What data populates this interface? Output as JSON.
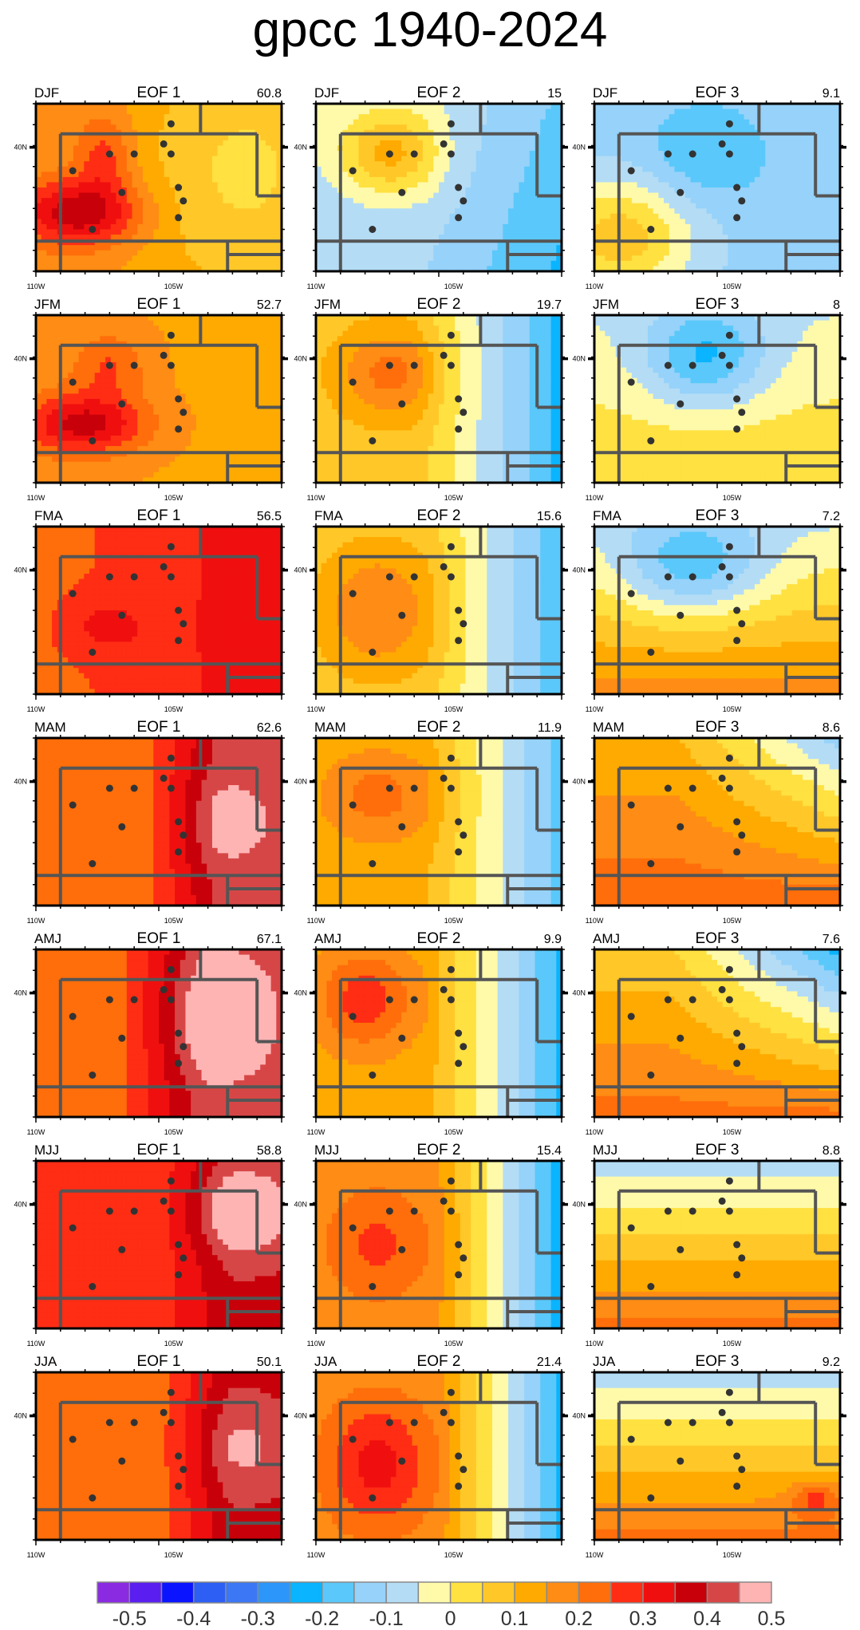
{
  "title": "gpcc 1940-2024",
  "chart_data": {
    "type": "heatmap",
    "title": "gpcc 1940-2024",
    "x_tick_labels": [
      "110W",
      "105W"
    ],
    "y_tick_labels": [
      "40N"
    ],
    "panels": [
      {
        "season": "DJF",
        "eof": "EOF 1",
        "variance": "60.8"
      },
      {
        "season": "DJF",
        "eof": "EOF 2",
        "variance": "15"
      },
      {
        "season": "DJF",
        "eof": "EOF 3",
        "variance": "9.1"
      },
      {
        "season": "JFM",
        "eof": "EOF 1",
        "variance": "52.7"
      },
      {
        "season": "JFM",
        "eof": "EOF 2",
        "variance": "19.7"
      },
      {
        "season": "JFM",
        "eof": "EOF 3",
        "variance": "8"
      },
      {
        "season": "FMA",
        "eof": "EOF 1",
        "variance": "56.5"
      },
      {
        "season": "FMA",
        "eof": "EOF 2",
        "variance": "15.6"
      },
      {
        "season": "FMA",
        "eof": "EOF 3",
        "variance": "7.2"
      },
      {
        "season": "MAM",
        "eof": "EOF 1",
        "variance": "62.6"
      },
      {
        "season": "MAM",
        "eof": "EOF 2",
        "variance": "11.9"
      },
      {
        "season": "MAM",
        "eof": "EOF 3",
        "variance": "8.6"
      },
      {
        "season": "AMJ",
        "eof": "EOF 1",
        "variance": "67.1"
      },
      {
        "season": "AMJ",
        "eof": "EOF 2",
        "variance": "9.9"
      },
      {
        "season": "AMJ",
        "eof": "EOF 3",
        "variance": "7.6"
      },
      {
        "season": "MJJ",
        "eof": "EOF 1",
        "variance": "58.8"
      },
      {
        "season": "MJJ",
        "eof": "EOF 2",
        "variance": "15.4"
      },
      {
        "season": "MJJ",
        "eof": "EOF 3",
        "variance": "8.8"
      },
      {
        "season": "JJA",
        "eof": "EOF 1",
        "variance": "50.1"
      },
      {
        "season": "JJA",
        "eof": "EOF 2",
        "variance": "21.4"
      },
      {
        "season": "JJA",
        "eof": "EOF 3",
        "variance": "9.2"
      }
    ],
    "colorbar": {
      "tick_labels": [
        "-0.5",
        "-0.4",
        "-0.3",
        "-0.2",
        "-0.1",
        "0",
        "0.1",
        "0.2",
        "0.3",
        "0.4",
        "0.5"
      ],
      "colors": [
        "#8a2be2",
        "#5a1ef0",
        "#0a14ff",
        "#2d5ff5",
        "#3c78f5",
        "#2d96fa",
        "#0ab4ff",
        "#5ac8fa",
        "#96d2fa",
        "#b4dcf5",
        "#fffaaa",
        "#ffe141",
        "#ffc828",
        "#ffaa00",
        "#ff8c14",
        "#ff6e0a",
        "#ff2d14",
        "#f00f0f",
        "#c8000a",
        "#d74646",
        "#ffb4b4"
      ]
    }
  }
}
